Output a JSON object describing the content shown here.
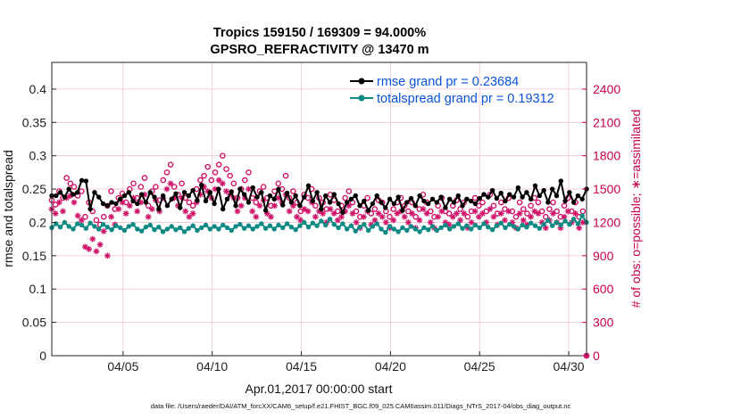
{
  "chart_data": {
    "type": "line",
    "title": "Tropics 159150 / 169309 = 94.000%",
    "subtitle": "GPSRO_REFRACTIVITY @ 13470 m",
    "xlabel": "Apr.01,2017 00:00:00 start",
    "ylabel": "rmse and totalspread",
    "y2label": "# of obs: o=possible; ∗=assimilated",
    "footnote": "data file: /Users/raeder/DAI/ATM_forcXX/CAM6_setup/f.e21.FHIST_BGC.f09_025.CAM6assim.011/Diags_NTrS_2017-04/obs_diag_output.nc",
    "xlim": [
      1.0,
      31.0
    ],
    "ylim": [
      0,
      0.44
    ],
    "y2lim": [
      0,
      2640
    ],
    "x_ticks": [
      5,
      10,
      15,
      20,
      25,
      30
    ],
    "x_tick_labels": [
      "04/05",
      "04/10",
      "04/15",
      "04/20",
      "04/25",
      "04/30"
    ],
    "y_ticks": [
      0,
      0.05,
      0.1,
      0.15,
      0.2,
      0.25,
      0.3,
      0.35,
      0.4
    ],
    "y_tick_labels": [
      "0",
      "0.05",
      "0.1",
      "0.15",
      "0.2",
      "0.25",
      "0.3",
      "0.35",
      "0.4"
    ],
    "y2_ticks": [
      0,
      300,
      600,
      900,
      1200,
      1500,
      1800,
      2100,
      2400
    ],
    "y2_tick_labels": [
      "0",
      "300",
      "600",
      "900",
      "1200",
      "1500",
      "1800",
      "2100",
      "2400"
    ],
    "series": [
      {
        "name": "rmse",
        "legend": "rmse grand pr = 0.23684",
        "axis": "left",
        "color": "#000000",
        "values": [
          0.24,
          0.24,
          0.245,
          0.238,
          0.25,
          0.242,
          0.245,
          0.263,
          0.262,
          0.22,
          0.245,
          0.238,
          0.228,
          0.225,
          0.23,
          0.228,
          0.235,
          0.24,
          0.245,
          0.232,
          0.228,
          0.242,
          0.23,
          0.245,
          0.238,
          0.22,
          0.24,
          0.225,
          0.235,
          0.243,
          0.222,
          0.245,
          0.24,
          0.248,
          0.233,
          0.256,
          0.232,
          0.245,
          0.228,
          0.25,
          0.22,
          0.235,
          0.246,
          0.225,
          0.25,
          0.242,
          0.23,
          0.252,
          0.238,
          0.245,
          0.218,
          0.24,
          0.235,
          0.25,
          0.226,
          0.244,
          0.23,
          0.24,
          0.225,
          0.238,
          0.255,
          0.232,
          0.245,
          0.22,
          0.24,
          0.23,
          0.242,
          0.228,
          0.215,
          0.23,
          0.235,
          0.24,
          0.225,
          0.232,
          0.218,
          0.228,
          0.24,
          0.23,
          0.222,
          0.235,
          0.228,
          0.238,
          0.218,
          0.23,
          0.236,
          0.225,
          0.24,
          0.232,
          0.228,
          0.235,
          0.23,
          0.238,
          0.222,
          0.235,
          0.23,
          0.24,
          0.225,
          0.235,
          0.232,
          0.228,
          0.236,
          0.242,
          0.238,
          0.248,
          0.236,
          0.244,
          0.232,
          0.242,
          0.238,
          0.252,
          0.238,
          0.245,
          0.235,
          0.255,
          0.24,
          0.248,
          0.23,
          0.25,
          0.24,
          0.262,
          0.232,
          0.245,
          0.23,
          0.24,
          0.235,
          0.25
        ]
      },
      {
        "name": "totalspread",
        "legend": "totalspread grand pr = 0.19312",
        "axis": "left",
        "color": "#0e8a84",
        "values": [
          0.192,
          0.198,
          0.193,
          0.2,
          0.194,
          0.19,
          0.198,
          0.196,
          0.191,
          0.199,
          0.194,
          0.19,
          0.197,
          0.193,
          0.189,
          0.195,
          0.192,
          0.188,
          0.194,
          0.197,
          0.19,
          0.187,
          0.193,
          0.196,
          0.189,
          0.193,
          0.186,
          0.19,
          0.194,
          0.189,
          0.192,
          0.186,
          0.191,
          0.195,
          0.188,
          0.192,
          0.196,
          0.19,
          0.194,
          0.19,
          0.196,
          0.192,
          0.188,
          0.194,
          0.197,
          0.191,
          0.195,
          0.19,
          0.194,
          0.198,
          0.191,
          0.195,
          0.19,
          0.196,
          0.192,
          0.198,
          0.193,
          0.189,
          0.195,
          0.2,
          0.193,
          0.199,
          0.195,
          0.202,
          0.196,
          0.205,
          0.197,
          0.192,
          0.198,
          0.19,
          0.195,
          0.187,
          0.193,
          0.197,
          0.188,
          0.194,
          0.198,
          0.19,
          0.185,
          0.194,
          0.19,
          0.186,
          0.192,
          0.188,
          0.194,
          0.19,
          0.186,
          0.192,
          0.189,
          0.194,
          0.188,
          0.192,
          0.196,
          0.19,
          0.194,
          0.198,
          0.191,
          0.195,
          0.19,
          0.196,
          0.192,
          0.198,
          0.193,
          0.189,
          0.195,
          0.199,
          0.192,
          0.197,
          0.194,
          0.19,
          0.196,
          0.193,
          0.199,
          0.195,
          0.191,
          0.197,
          0.203,
          0.195,
          0.2,
          0.196,
          0.202,
          0.197,
          0.205,
          0.198,
          0.21,
          0.2
        ]
      },
      {
        "name": "possible",
        "axis": "right",
        "marker": "circle",
        "color": "#d0146a",
        "values": [
          1400,
          1360,
          1480,
          1420,
          1600,
          1550,
          1520,
          1440,
          1480,
          1250,
          1380,
          1300,
          1220,
          1180,
          1250,
          1350,
          1480,
          1320,
          1420,
          1460,
          1380,
          1500,
          1550,
          1420,
          1520,
          1600,
          1350,
          1480,
          1520,
          1400,
          1580,
          1650,
          1720,
          1520,
          1450,
          1550,
          1420,
          1380,
          1350,
          1500,
          1580,
          1620,
          1700,
          1580,
          1650,
          1720,
          1800,
          1680,
          1620,
          1550,
          1420,
          1500,
          1580,
          1650,
          1420,
          1380,
          1480,
          1520,
          1420,
          1350,
          1480,
          1550,
          1500,
          1620,
          1420,
          1480,
          1380,
          1300,
          1450,
          1420,
          1500,
          1350,
          1420,
          1380,
          1320,
          1450,
          1400,
          1300,
          1350,
          1420,
          1480,
          1380,
          1300,
          1250,
          1350,
          1420,
          1280,
          1320,
          1400,
          1380,
          1300,
          1250,
          1320,
          1380,
          1420,
          1350,
          1300,
          1380,
          1250,
          1320,
          1450,
          1380,
          1300,
          1250,
          1350,
          1420,
          1300,
          1280,
          1350,
          1400,
          1320,
          1380,
          1250,
          1300,
          1420,
          1350,
          1380,
          1300,
          1450,
          1350,
          1280,
          1380,
          1320,
          1420,
          1300,
          1250,
          1380,
          1320,
          1280,
          1350,
          1420,
          1380,
          1300,
          1250,
          1320,
          1380,
          1300,
          1250,
          1350,
          1420,
          1300,
          1380,
          1250,
          1300,
          0
        ]
      },
      {
        "name": "assimilated",
        "axis": "right",
        "marker": "asterisk",
        "color": "#d0146a",
        "values": [
          1320,
          1280,
          1380,
          1300,
          1420,
          1440,
          1380,
          1260,
          1220,
          980,
          960,
          1050,
          940,
          1000,
          1120,
          900,
          1250,
          1180,
          1320,
          1380,
          1280,
          1350,
          1420,
          1300,
          1380,
          1450,
          1250,
          1320,
          1400,
          1300,
          1420,
          1500,
          1550,
          1420,
          1350,
          1420,
          1300,
          1250,
          1280,
          1380,
          1450,
          1520,
          1480,
          1420,
          1500,
          1580,
          1550,
          1480,
          1450,
          1420,
          1300,
          1350,
          1420,
          1500,
          1300,
          1250,
          1350,
          1400,
          1280,
          1250,
          1350,
          1420,
          1380,
          1450,
          1300,
          1350,
          1250,
          1220,
          1320,
          1300,
          1380,
          1250,
          1300,
          1280,
          1200,
          1320,
          1280,
          1220,
          1250,
          1300,
          1350,
          1280,
          1200,
          1150,
          1250,
          1300,
          1180,
          1220,
          1280,
          1250,
          1200,
          1150,
          1220,
          1280,
          1300,
          1250,
          1200,
          1280,
          1150,
          1220,
          1320,
          1280,
          1200,
          1150,
          1250,
          1300,
          1200,
          1180,
          1250,
          1280,
          1220,
          1280,
          1150,
          1200,
          1300,
          1250,
          1280,
          1200,
          1320,
          1250,
          1180,
          1280,
          1220,
          1300,
          1200,
          1150,
          1280,
          1220,
          1180,
          1250,
          1300,
          1280,
          1200,
          1150,
          1220,
          1280,
          1200,
          1150,
          1250,
          1300,
          1200,
          1280,
          1150,
          1200,
          0
        ]
      }
    ]
  }
}
